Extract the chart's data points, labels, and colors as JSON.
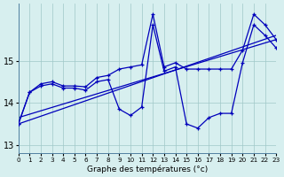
{
  "xlabel": "Graphe des températures (°c)",
  "xlim": [
    0,
    23
  ],
  "ylim": [
    12.8,
    16.35
  ],
  "yticks": [
    13,
    14,
    15
  ],
  "xticks": [
    0,
    1,
    2,
    3,
    4,
    5,
    6,
    7,
    8,
    9,
    10,
    11,
    12,
    13,
    14,
    15,
    16,
    17,
    18,
    19,
    20,
    21,
    22,
    23
  ],
  "background_color": "#d7efef",
  "line_color": "#0000bb",
  "hours": [
    0,
    1,
    2,
    3,
    4,
    5,
    6,
    7,
    8,
    9,
    10,
    11,
    12,
    13,
    14,
    15,
    16,
    17,
    18,
    19,
    20,
    21,
    22,
    23
  ],
  "curve_peak": [
    13.5,
    14.25,
    14.45,
    14.5,
    14.4,
    14.4,
    14.38,
    14.6,
    14.65,
    14.8,
    14.85,
    14.9,
    16.1,
    14.85,
    14.95,
    14.8,
    14.8,
    14.8,
    14.8,
    14.8,
    15.25,
    16.1,
    15.85,
    15.5
  ],
  "curve_low": [
    13.5,
    14.25,
    14.4,
    14.45,
    14.35,
    14.35,
    14.3,
    14.5,
    14.55,
    13.85,
    13.7,
    13.9,
    15.85,
    14.75,
    14.85,
    13.5,
    13.4,
    13.65,
    13.75,
    13.75,
    14.95,
    15.85,
    15.6,
    15.3
  ],
  "trend1_x": [
    0,
    23
  ],
  "trend1_y": [
    13.5,
    15.6
  ],
  "trend2_x": [
    0,
    23
  ],
  "trend2_y": [
    13.65,
    15.5
  ]
}
